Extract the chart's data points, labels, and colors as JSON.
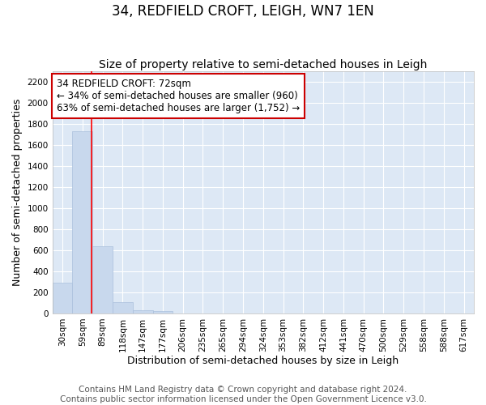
{
  "title": "34, REDFIELD CROFT, LEIGH, WN7 1EN",
  "subtitle": "Size of property relative to semi-detached houses in Leigh",
  "xlabel": "Distribution of semi-detached houses by size in Leigh",
  "ylabel": "Number of semi-detached properties",
  "footer_line1": "Contains HM Land Registry data © Crown copyright and database right 2024.",
  "footer_line2": "Contains public sector information licensed under the Open Government Licence v3.0.",
  "bin_labels": [
    "30sqm",
    "59sqm",
    "89sqm",
    "118sqm",
    "147sqm",
    "177sqm",
    "206sqm",
    "235sqm",
    "265sqm",
    "294sqm",
    "324sqm",
    "353sqm",
    "382sqm",
    "412sqm",
    "441sqm",
    "470sqm",
    "500sqm",
    "529sqm",
    "558sqm",
    "588sqm",
    "617sqm"
  ],
  "bin_values": [
    290,
    1730,
    640,
    110,
    30,
    25,
    0,
    0,
    0,
    0,
    0,
    0,
    0,
    0,
    0,
    0,
    0,
    0,
    0,
    0,
    0
  ],
  "bar_color": "#c8d8ed",
  "bar_edgecolor": "#aac0dc",
  "red_line_x": 1.47,
  "annotation_line1": "34 REDFIELD CROFT: 72sqm",
  "annotation_line2": "← 34% of semi-detached houses are smaller (960)",
  "annotation_line3": "63% of semi-detached houses are larger (1,752) →",
  "annotation_box_facecolor": "#ffffff",
  "annotation_border_color": "#cc0000",
  "ylim": [
    0,
    2300
  ],
  "yticks": [
    0,
    200,
    400,
    600,
    800,
    1000,
    1200,
    1400,
    1600,
    1800,
    2000,
    2200
  ],
  "plot_bg_color": "#dde8f5",
  "fig_bg_color": "#ffffff",
  "grid_color": "#ffffff",
  "title_fontsize": 12,
  "subtitle_fontsize": 10,
  "axis_label_fontsize": 9,
  "tick_fontsize": 7.5,
  "annotation_fontsize": 8.5,
  "footer_fontsize": 7.5
}
